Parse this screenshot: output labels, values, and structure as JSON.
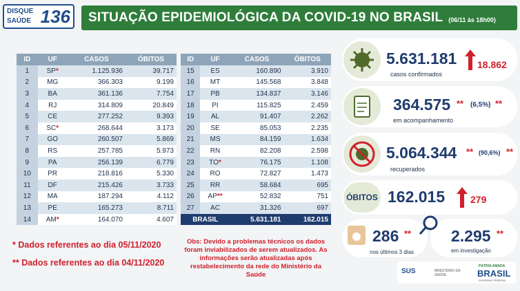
{
  "header": {
    "logo": {
      "line1": "DISQUE",
      "line2": "SAÚDE",
      "number": "136"
    },
    "title": "SITUAÇÃO EPIDEMIOLÓGICA DA COVID-19 NO BRASIL",
    "date": "(06/11 às 18h00)"
  },
  "tables": [
    {
      "columns": [
        "ID",
        "UF",
        "CASOS",
        "ÓBITOS"
      ],
      "rows": [
        {
          "id": "1",
          "uf": "SP",
          "note": "*",
          "casos": "1.125.936",
          "obitos": "39.717"
        },
        {
          "id": "2",
          "uf": "MG",
          "casos": "366.303",
          "obitos": "9.199"
        },
        {
          "id": "3",
          "uf": "BA",
          "casos": "361.136",
          "obitos": "7.754"
        },
        {
          "id": "4",
          "uf": "RJ",
          "casos": "314.809",
          "obitos": "20.849"
        },
        {
          "id": "5",
          "uf": "CE",
          "casos": "277.252",
          "obitos": "9.393"
        },
        {
          "id": "6",
          "uf": "SC",
          "note": "*",
          "casos": "268.644",
          "obitos": "3.173"
        },
        {
          "id": "7",
          "uf": "GO",
          "casos": "260.507",
          "obitos": "5.869"
        },
        {
          "id": "8",
          "uf": "RS",
          "casos": "257.785",
          "obitos": "5.973"
        },
        {
          "id": "9",
          "uf": "PA",
          "casos": "256.139",
          "obitos": "6.779"
        },
        {
          "id": "10",
          "uf": "PR",
          "casos": "218.816",
          "obitos": "5.330"
        },
        {
          "id": "11",
          "uf": "DF",
          "casos": "215.426",
          "obitos": "3.733"
        },
        {
          "id": "12",
          "uf": "MA",
          "casos": "187.294",
          "obitos": "4.112"
        },
        {
          "id": "13",
          "uf": "PE",
          "casos": "165.273",
          "obitos": "8.711"
        },
        {
          "id": "14",
          "uf": "AM",
          "note": "*",
          "casos": "164.070",
          "obitos": "4.607"
        }
      ]
    },
    {
      "columns": [
        "ID",
        "UF",
        "CASOS",
        "ÓBITOS"
      ],
      "rows": [
        {
          "id": "15",
          "uf": "ES",
          "casos": "160.890",
          "obitos": "3.910"
        },
        {
          "id": "16",
          "uf": "MT",
          "casos": "145.568",
          "obitos": "3.848"
        },
        {
          "id": "17",
          "uf": "PB",
          "casos": "134.837",
          "obitos": "3.146"
        },
        {
          "id": "18",
          "uf": "PI",
          "casos": "115.825",
          "obitos": "2.459"
        },
        {
          "id": "19",
          "uf": "AL",
          "casos": "91.407",
          "obitos": "2.262"
        },
        {
          "id": "20",
          "uf": "SE",
          "casos": "85.053",
          "obitos": "2.235"
        },
        {
          "id": "21",
          "uf": "MS",
          "casos": "84.159",
          "obitos": "1.634"
        },
        {
          "id": "22",
          "uf": "RN",
          "casos": "82.208",
          "obitos": "2.598"
        },
        {
          "id": "23",
          "uf": "TO",
          "note": "*",
          "casos": "76.175",
          "obitos": "1.108"
        },
        {
          "id": "24",
          "uf": "RO",
          "casos": "72.827",
          "obitos": "1.473"
        },
        {
          "id": "25",
          "uf": "RR",
          "casos": "58.684",
          "obitos": "695"
        },
        {
          "id": "26",
          "uf": "AP",
          "note": "**",
          "casos": "52.832",
          "obitos": "751"
        },
        {
          "id": "27",
          "uf": "AC",
          "casos": "31.326",
          "obitos": "697"
        }
      ],
      "total": {
        "label": "BRASIL",
        "casos": "5.631.181",
        "obitos": "162.015"
      }
    }
  ],
  "footnotes": [
    "* Dados referentes ao dia 05/11/2020",
    "** Dados referentes ao dia 04/11/2020"
  ],
  "obs": "Obs: Devido a problemas técnicos os dados foram inviabilizados de serem atualizados. As informações serão atualizadas após restabelecimento da rede do Ministério da Saúde",
  "stats": {
    "confirmados": {
      "value": "5.631.181",
      "increase": "18.862",
      "label": "casos confirmados"
    },
    "acompanhamento": {
      "value": "364.575",
      "marker": "**",
      "percent": "(6,5%)",
      "percent_marker": "**",
      "label": "em acompanhamento"
    },
    "recuperados": {
      "value": "5.064.344",
      "marker": "**",
      "percent": "(90,6%)",
      "percent_marker": "**",
      "label": "recuperados"
    },
    "obitos": {
      "badge": "ÓBITOS",
      "value": "162.015",
      "increase": "279"
    },
    "ultimos_dias": {
      "value": "286",
      "marker": "**",
      "label": "nos últimos 3 dias"
    },
    "investigacao": {
      "value": "2.295",
      "marker": "**",
      "label": "em investigação"
    }
  },
  "footer": {
    "sus": "SUS",
    "ministerio": "MINISTÉRIO DA SAÚDE",
    "slogan": "PÁTRIA AMADA",
    "brasil": "BRASIL",
    "governo": "GOVERNO FEDERAL"
  }
}
